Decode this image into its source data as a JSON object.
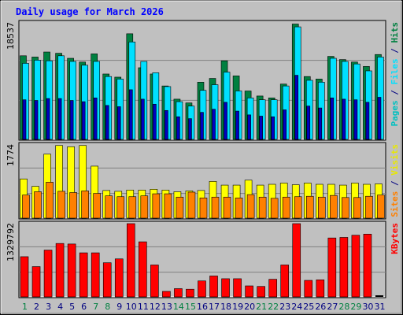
{
  "chart_data": {
    "type": "bar",
    "title": "Daily usage for March 2026",
    "colors": {
      "background": "#c0c0c0",
      "title": "#0000ff",
      "hits": "#008040",
      "files": "#00e0ff",
      "pages": "#0000c0",
      "visits": "#ffff00",
      "sites": "#ff8000",
      "kbytes": "#ff0000",
      "weekend_day": "#008040",
      "weekday": "#000080"
    },
    "categories": [
      "1",
      "2",
      "3",
      "4",
      "5",
      "6",
      "7",
      "8",
      "9",
      "10",
      "11",
      "12",
      "13",
      "14",
      "15",
      "16",
      "17",
      "18",
      "19",
      "20",
      "21",
      "22",
      "23",
      "24",
      "25",
      "26",
      "27",
      "28",
      "29",
      "30",
      "31"
    ],
    "weekend_days": [
      "1",
      "7",
      "8",
      "14",
      "15",
      "21",
      "22",
      "28",
      "29"
    ],
    "panels": [
      {
        "id": "top",
        "max_label": "18537",
        "ymax": 18537,
        "legend": [
          {
            "text": "Pages",
            "color": "#00c0c0"
          },
          {
            "text": " / ",
            "color": "#000080"
          },
          {
            "text": "Files",
            "color": "#00e0ff"
          },
          {
            "text": " / ",
            "color": "#000080"
          },
          {
            "text": "Hits",
            "color": "#008040"
          }
        ],
        "series": [
          {
            "name": "Hits",
            "color": "#008040",
            "values": [
              13300,
              13100,
              13900,
              13700,
              12900,
              12300,
              13600,
              10400,
              9900,
              16800,
              11400,
              10400,
              8500,
              6400,
              5800,
              9100,
              9700,
              12500,
              10100,
              7700,
              6900,
              6600,
              8800,
              18350,
              10000,
              9600,
              13200,
              12700,
              12300,
              11600,
              13500
            ]
          },
          {
            "name": "Files",
            "color": "#00e0ff",
            "values": [
              12100,
              12600,
              12500,
              13300,
              12400,
              11800,
              12400,
              10000,
              9600,
              15500,
              12400,
              10600,
              8400,
              6000,
              5300,
              7800,
              8700,
              10700,
              7700,
              6600,
              6300,
              6300,
              8500,
              17900,
              9400,
              9100,
              12900,
              12400,
              12000,
              10900,
              13100
            ]
          },
          {
            "name": "Pages",
            "color": "#0000c0",
            "values": [
              6300,
              6200,
              6500,
              6500,
              6200,
              6000,
              6600,
              5400,
              5200,
              7900,
              6400,
              5600,
              4600,
              3600,
              3300,
              4300,
              4800,
              5900,
              4500,
              3900,
              3700,
              3600,
              4700,
              10200,
              5300,
              5000,
              6600,
              6400,
              6300,
              5900,
              6700
            ]
          }
        ]
      },
      {
        "id": "middle",
        "max_label": "1774",
        "ymax": 1774,
        "legend": [
          {
            "text": "Sites",
            "color": "#ff8000"
          },
          {
            "text": " / ",
            "color": "#000080"
          },
          {
            "text": "Visits",
            "color": "#e8e800"
          }
        ],
        "series": [
          {
            "name": "Visits",
            "color": "#ffff00",
            "values": [
              950,
              770,
              1550,
              1760,
              1730,
              1760,
              1260,
              670,
              650,
              680,
              680,
              700,
              680,
              640,
              660,
              670,
              890,
              800,
              800,
              920,
              800,
              820,
              850,
              810,
              850,
              820,
              820,
              800,
              850,
              820,
              830
            ]
          },
          {
            "name": "Sites",
            "color": "#ff8000",
            "values": [
              560,
              640,
              870,
              650,
              620,
              660,
              600,
              540,
              520,
              520,
              540,
              590,
              590,
              510,
              630,
              490,
              510,
              510,
              490,
              570,
              510,
              480,
              510,
              520,
              530,
              510,
              550,
              500,
              500,
              530,
              560
            ]
          }
        ]
      },
      {
        "id": "bottom",
        "max_label": "1329792",
        "ymax": 1329792,
        "legend": [
          {
            "text": "KBytes",
            "color": "#ff0000"
          }
        ],
        "series": [
          {
            "name": "KBytes",
            "color": "#ff0000",
            "values": [
              730000,
              550000,
              850000,
              970000,
              960000,
              800000,
              800000,
              620000,
              690000,
              1330000,
              1000000,
              580000,
              100000,
              150000,
              140000,
              290000,
              380000,
              330000,
              330000,
              200000,
              190000,
              320000,
              580000,
              1330000,
              300000,
              310000,
              1070000,
              1080000,
              1120000,
              1140000,
              0
            ]
          }
        ]
      }
    ]
  }
}
